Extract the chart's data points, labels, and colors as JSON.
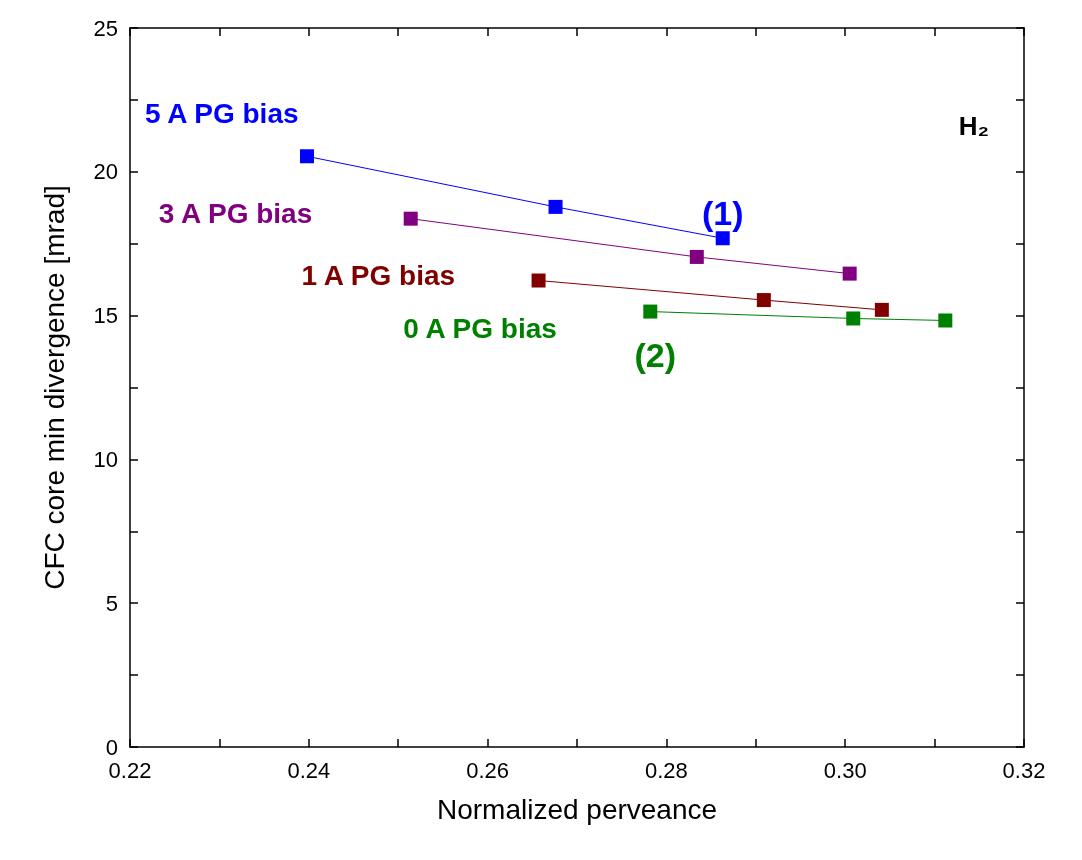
{
  "chart_data": {
    "type": "line",
    "xlabel": "Normalized perveance",
    "ylabel": "CFC core min divergence [mrad]",
    "xlim": [
      0.22,
      0.32
    ],
    "xticks": [
      {
        "value": 0.22,
        "label": "0.22"
      },
      {
        "value": 0.23,
        "label": null
      },
      {
        "value": 0.24,
        "label": "0.24"
      },
      {
        "value": 0.25,
        "label": null
      },
      {
        "value": 0.26,
        "label": "0.26"
      },
      {
        "value": 0.27,
        "label": null
      },
      {
        "value": 0.28,
        "label": "0.28"
      },
      {
        "value": 0.29,
        "label": null
      },
      {
        "value": 0.3,
        "label": "0.30"
      },
      {
        "value": 0.31,
        "label": null
      },
      {
        "value": 0.32,
        "label": "0.32"
      }
    ],
    "ylim": [
      0,
      25
    ],
    "yticks": [
      0,
      {
        "value": 2.5,
        "label": null
      },
      5,
      {
        "value": 7.5,
        "label": null
      },
      10,
      {
        "value": 12.5,
        "label": null
      },
      15,
      {
        "value": 17.5,
        "label": null
      },
      20,
      {
        "value": 22.5,
        "label": null
      },
      25
    ],
    "marker": "square",
    "line_style": "solid",
    "grid": false,
    "legend": false,
    "series": [
      {
        "name": "5 A PG bias",
        "color": "#0000ff",
        "x": [
          0.2398,
          0.2676,
          0.2863
        ],
        "values": [
          20.54,
          18.78,
          17.69
        ]
      },
      {
        "name": "3 A PG bias",
        "color": "#800080",
        "x": [
          0.2514,
          0.2834,
          0.3005
        ],
        "values": [
          18.37,
          17.04,
          16.46
        ]
      },
      {
        "name": "1 A PG bias",
        "color": "#800000",
        "x": [
          0.2657,
          0.2909,
          0.3041
        ],
        "values": [
          16.22,
          15.54,
          15.2
        ]
      },
      {
        "name": "0 A PG bias",
        "color": "#008000",
        "x": [
          0.2782,
          0.3009,
          0.3112
        ],
        "values": [
          15.14,
          14.9,
          14.83
        ]
      }
    ],
    "annotations": [
      {
        "text": "(1)",
        "x": 0.2863,
        "y": 17.69
      },
      {
        "text": "(2)",
        "x": 0.2782,
        "y": 15.14
      },
      "H₂"
    ]
  }
}
